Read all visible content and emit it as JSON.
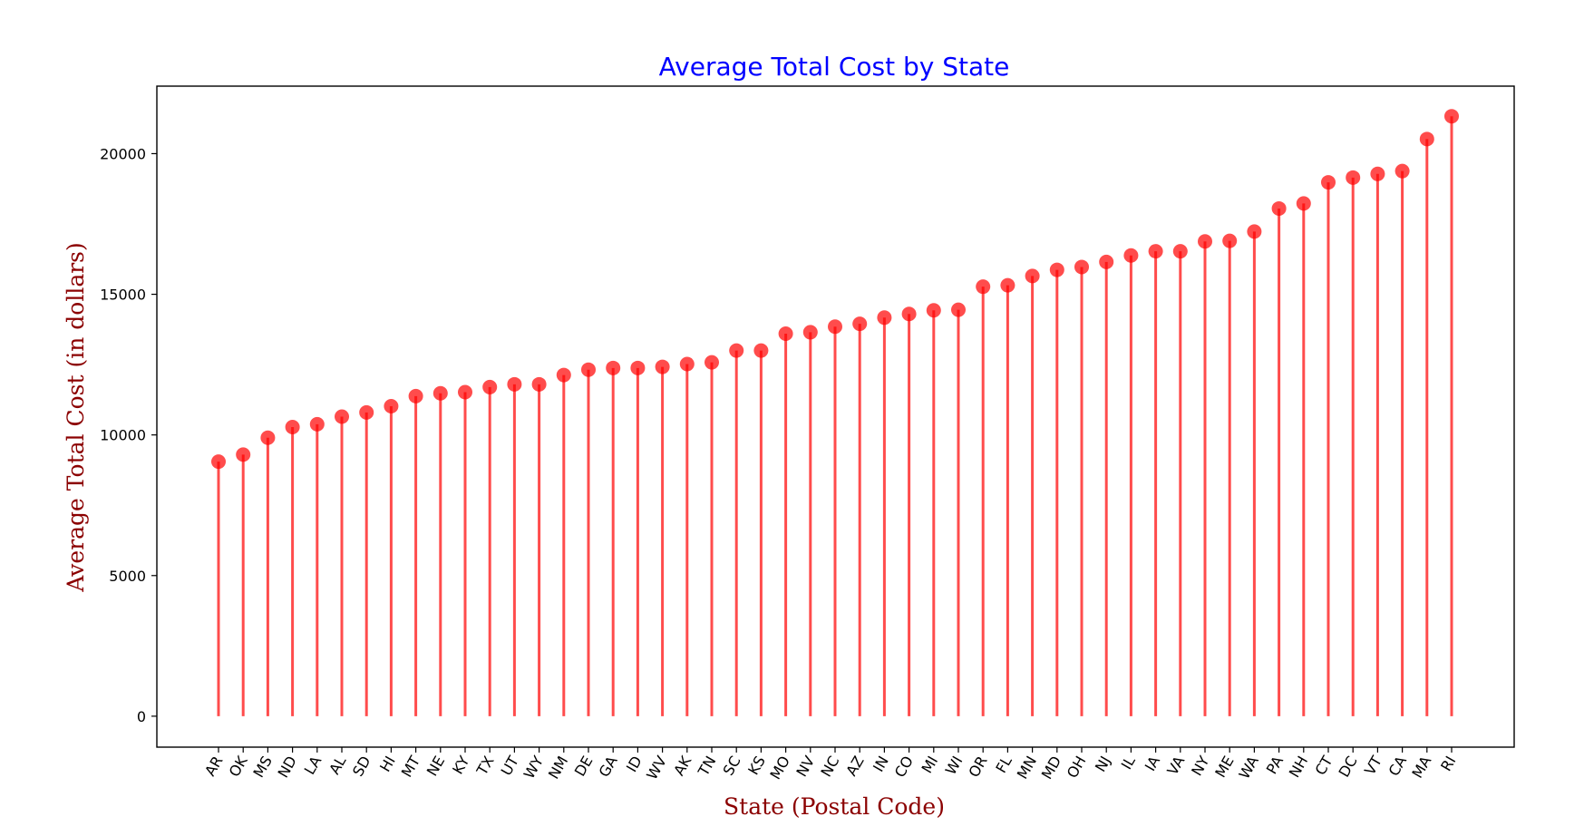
{
  "colors": {
    "title": "#0000ff",
    "axis_label": "#8b0000",
    "stem": "#ff0000",
    "marker": "#ff0000",
    "axes": "#000000"
  },
  "chart_data": {
    "type": "lollipop",
    "title": "Average Total Cost by State",
    "xlabel": "State (Postal Code)",
    "ylabel": "Average Total Cost (in dollars)",
    "ylim": [
      -1100,
      22400
    ],
    "yticks": [
      0,
      5000,
      10000,
      15000,
      20000
    ],
    "grid": false,
    "legend": "none",
    "categories": [
      "AR",
      "OK",
      "MS",
      "ND",
      "LA",
      "AL",
      "SD",
      "HI",
      "MT",
      "NE",
      "KY",
      "TX",
      "UT",
      "WY",
      "NM",
      "DE",
      "GA",
      "ID",
      "WV",
      "AK",
      "TN",
      "SC",
      "KS",
      "MO",
      "NV",
      "NC",
      "AZ",
      "IN",
      "CO",
      "MI",
      "WI",
      "OR",
      "FL",
      "MN",
      "MD",
      "OH",
      "NJ",
      "IL",
      "IA",
      "VA",
      "NY",
      "ME",
      "WA",
      "PA",
      "NH",
      "CT",
      "DC",
      "VT",
      "CA",
      "MA",
      "RI"
    ],
    "values": [
      9050,
      9300,
      9900,
      10280,
      10380,
      10650,
      10800,
      11020,
      11380,
      11480,
      11520,
      11700,
      11800,
      11800,
      12130,
      12320,
      12380,
      12380,
      12420,
      12520,
      12580,
      13000,
      13000,
      13600,
      13650,
      13850,
      13950,
      14170,
      14300,
      14430,
      14450,
      15270,
      15320,
      15650,
      15870,
      15970,
      16150,
      16380,
      16530,
      16530,
      16880,
      16900,
      17230,
      18050,
      18230,
      18980,
      19150,
      19280,
      19380,
      20520,
      21330
    ]
  }
}
